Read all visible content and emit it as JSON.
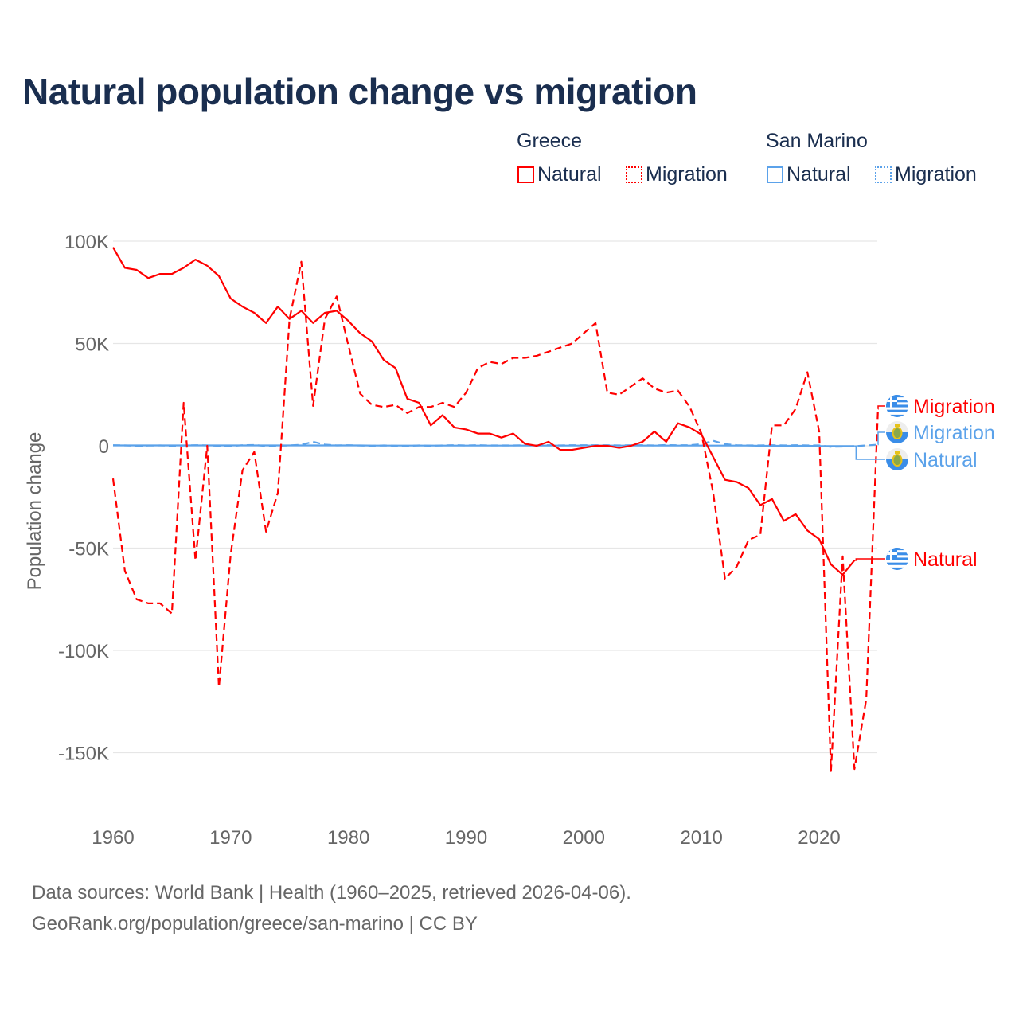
{
  "chart_data": {
    "type": "line",
    "title": "Natural population change vs migration",
    "xlabel": "",
    "ylabel": "Population change",
    "xlim": [
      1960,
      2025
    ],
    "ylim": [
      -160000,
      100000
    ],
    "x_ticks": [
      "1960",
      "1970",
      "1980",
      "1990",
      "2000",
      "2010",
      "2020"
    ],
    "y_ticks": [
      {
        "value": 100000,
        "label": "100K"
      },
      {
        "value": 50000,
        "label": "50K"
      },
      {
        "value": 0,
        "label": "0"
      },
      {
        "value": -50000,
        "label": "-50K"
      },
      {
        "value": -100000,
        "label": "-100K"
      },
      {
        "value": -150000,
        "label": "-150K"
      }
    ],
    "grid": true,
    "legend": {
      "placement": "top-right",
      "groups": [
        {
          "name": "Greece",
          "items": [
            "Natural",
            "Migration"
          ]
        },
        {
          "name": "San Marino",
          "items": [
            "Natural",
            "Migration"
          ]
        }
      ]
    },
    "colors": {
      "greece": "#ff0000",
      "san_marino": "#5ba2ea"
    },
    "series": [
      {
        "name": "Greece Natural",
        "country": "Greece",
        "kind": "Natural",
        "style": "solid",
        "end_label": "Natural",
        "start_year": 1960,
        "values_thousands": [
          97,
          87,
          86,
          82,
          84,
          84,
          87,
          91,
          88,
          83,
          72,
          68,
          65,
          60,
          68,
          62,
          66,
          60,
          65,
          66,
          61,
          55,
          51,
          42,
          38,
          23,
          21,
          10,
          15,
          9,
          8,
          6,
          6,
          4,
          6,
          1,
          0,
          2,
          -2,
          -2,
          -1,
          0,
          0,
          -1,
          0,
          2,
          7,
          2,
          11,
          9,
          5.5,
          -5.5,
          -16.6,
          -17.7,
          -20.7,
          -29,
          -26,
          -36.7,
          -33.4,
          -41.4,
          -45.6,
          -58,
          -63,
          -56
        ]
      },
      {
        "name": "Greece Migration",
        "country": "Greece",
        "kind": "Migration",
        "style": "dashed",
        "end_label": "Migration",
        "start_year": 1960,
        "values_thousands": [
          -16,
          -61,
          -75,
          -77,
          -77,
          -82,
          21,
          -56,
          0,
          -118,
          -53,
          -12,
          -3,
          -42,
          -23,
          62,
          90,
          19.5,
          62,
          73,
          49,
          25.5,
          20,
          19,
          20,
          16,
          19,
          19,
          21,
          19,
          26,
          38,
          41,
          40,
          43,
          43,
          44,
          46,
          48,
          50,
          55,
          60,
          26,
          25,
          29,
          33,
          28,
          26,
          27,
          19,
          6,
          -23,
          -65,
          -59,
          -46,
          -43.5,
          10,
          10,
          18,
          36,
          7,
          -159,
          -54,
          -158,
          -124,
          18
        ]
      },
      {
        "name": "San Marino Natural",
        "country": "San Marino",
        "kind": "Natural",
        "style": "solid",
        "end_label": "Natural",
        "start_year": 1960,
        "values_thousands": [
          0.2,
          0.2,
          0.2,
          0.2,
          0.2,
          0.2,
          0.2,
          0.2,
          0.2,
          0.2,
          0.2,
          0.2,
          0.2,
          0.2,
          0.2,
          0.2,
          0.2,
          0.2,
          0.2,
          0.2,
          0.2,
          0.2,
          0.1,
          0.1,
          0.1,
          0.1,
          0.1,
          0.1,
          0.1,
          0.1,
          0.1,
          0.1,
          0.1,
          0.1,
          0.1,
          0.1,
          0.1,
          0.1,
          0.1,
          0.1,
          0.1,
          0.1,
          0.1,
          0.1,
          0.1,
          0.1,
          0.1,
          0.1,
          0.1,
          0.1,
          0.1,
          0.1,
          0.1,
          0.1,
          0.1,
          0,
          0,
          0,
          0,
          0,
          -0.1,
          -0.1,
          -0.1,
          -0.1
        ]
      },
      {
        "name": "San Marino Migration",
        "country": "San Marino",
        "kind": "Migration",
        "style": "dashed",
        "end_label": "Migration",
        "start_year": 1960,
        "values_thousands": [
          0.3,
          0.2,
          0,
          0.1,
          0.2,
          0,
          0.1,
          0.3,
          0.2,
          0,
          -0.2,
          0.3,
          0.4,
          -0.1,
          0,
          0.2,
          0.5,
          2,
          0.6,
          0.2,
          0.3,
          0.1,
          0,
          0.2,
          0,
          -0.1,
          0.2,
          0,
          0.2,
          0.3,
          0.2,
          0.3,
          0.2,
          0.2,
          0.2,
          0.3,
          0.2,
          0.3,
          0.2,
          0.3,
          0.3,
          0.3,
          0.3,
          0.2,
          0.3,
          0.3,
          0.2,
          0.4,
          0.3,
          0.3,
          0.8,
          2.5,
          0.8,
          0.3,
          0.2,
          0.2,
          0.3,
          0.2,
          0.3,
          0.2,
          0.2,
          -0.5,
          -0.4,
          -0.2,
          0.2,
          0.6
        ]
      }
    ]
  },
  "footer": {
    "line1": "Data sources: World Bank | Health (1960–2025, retrieved 2026-04-06).",
    "line2": "GeoRank.org/population/greece/san-marino | CC BY"
  }
}
